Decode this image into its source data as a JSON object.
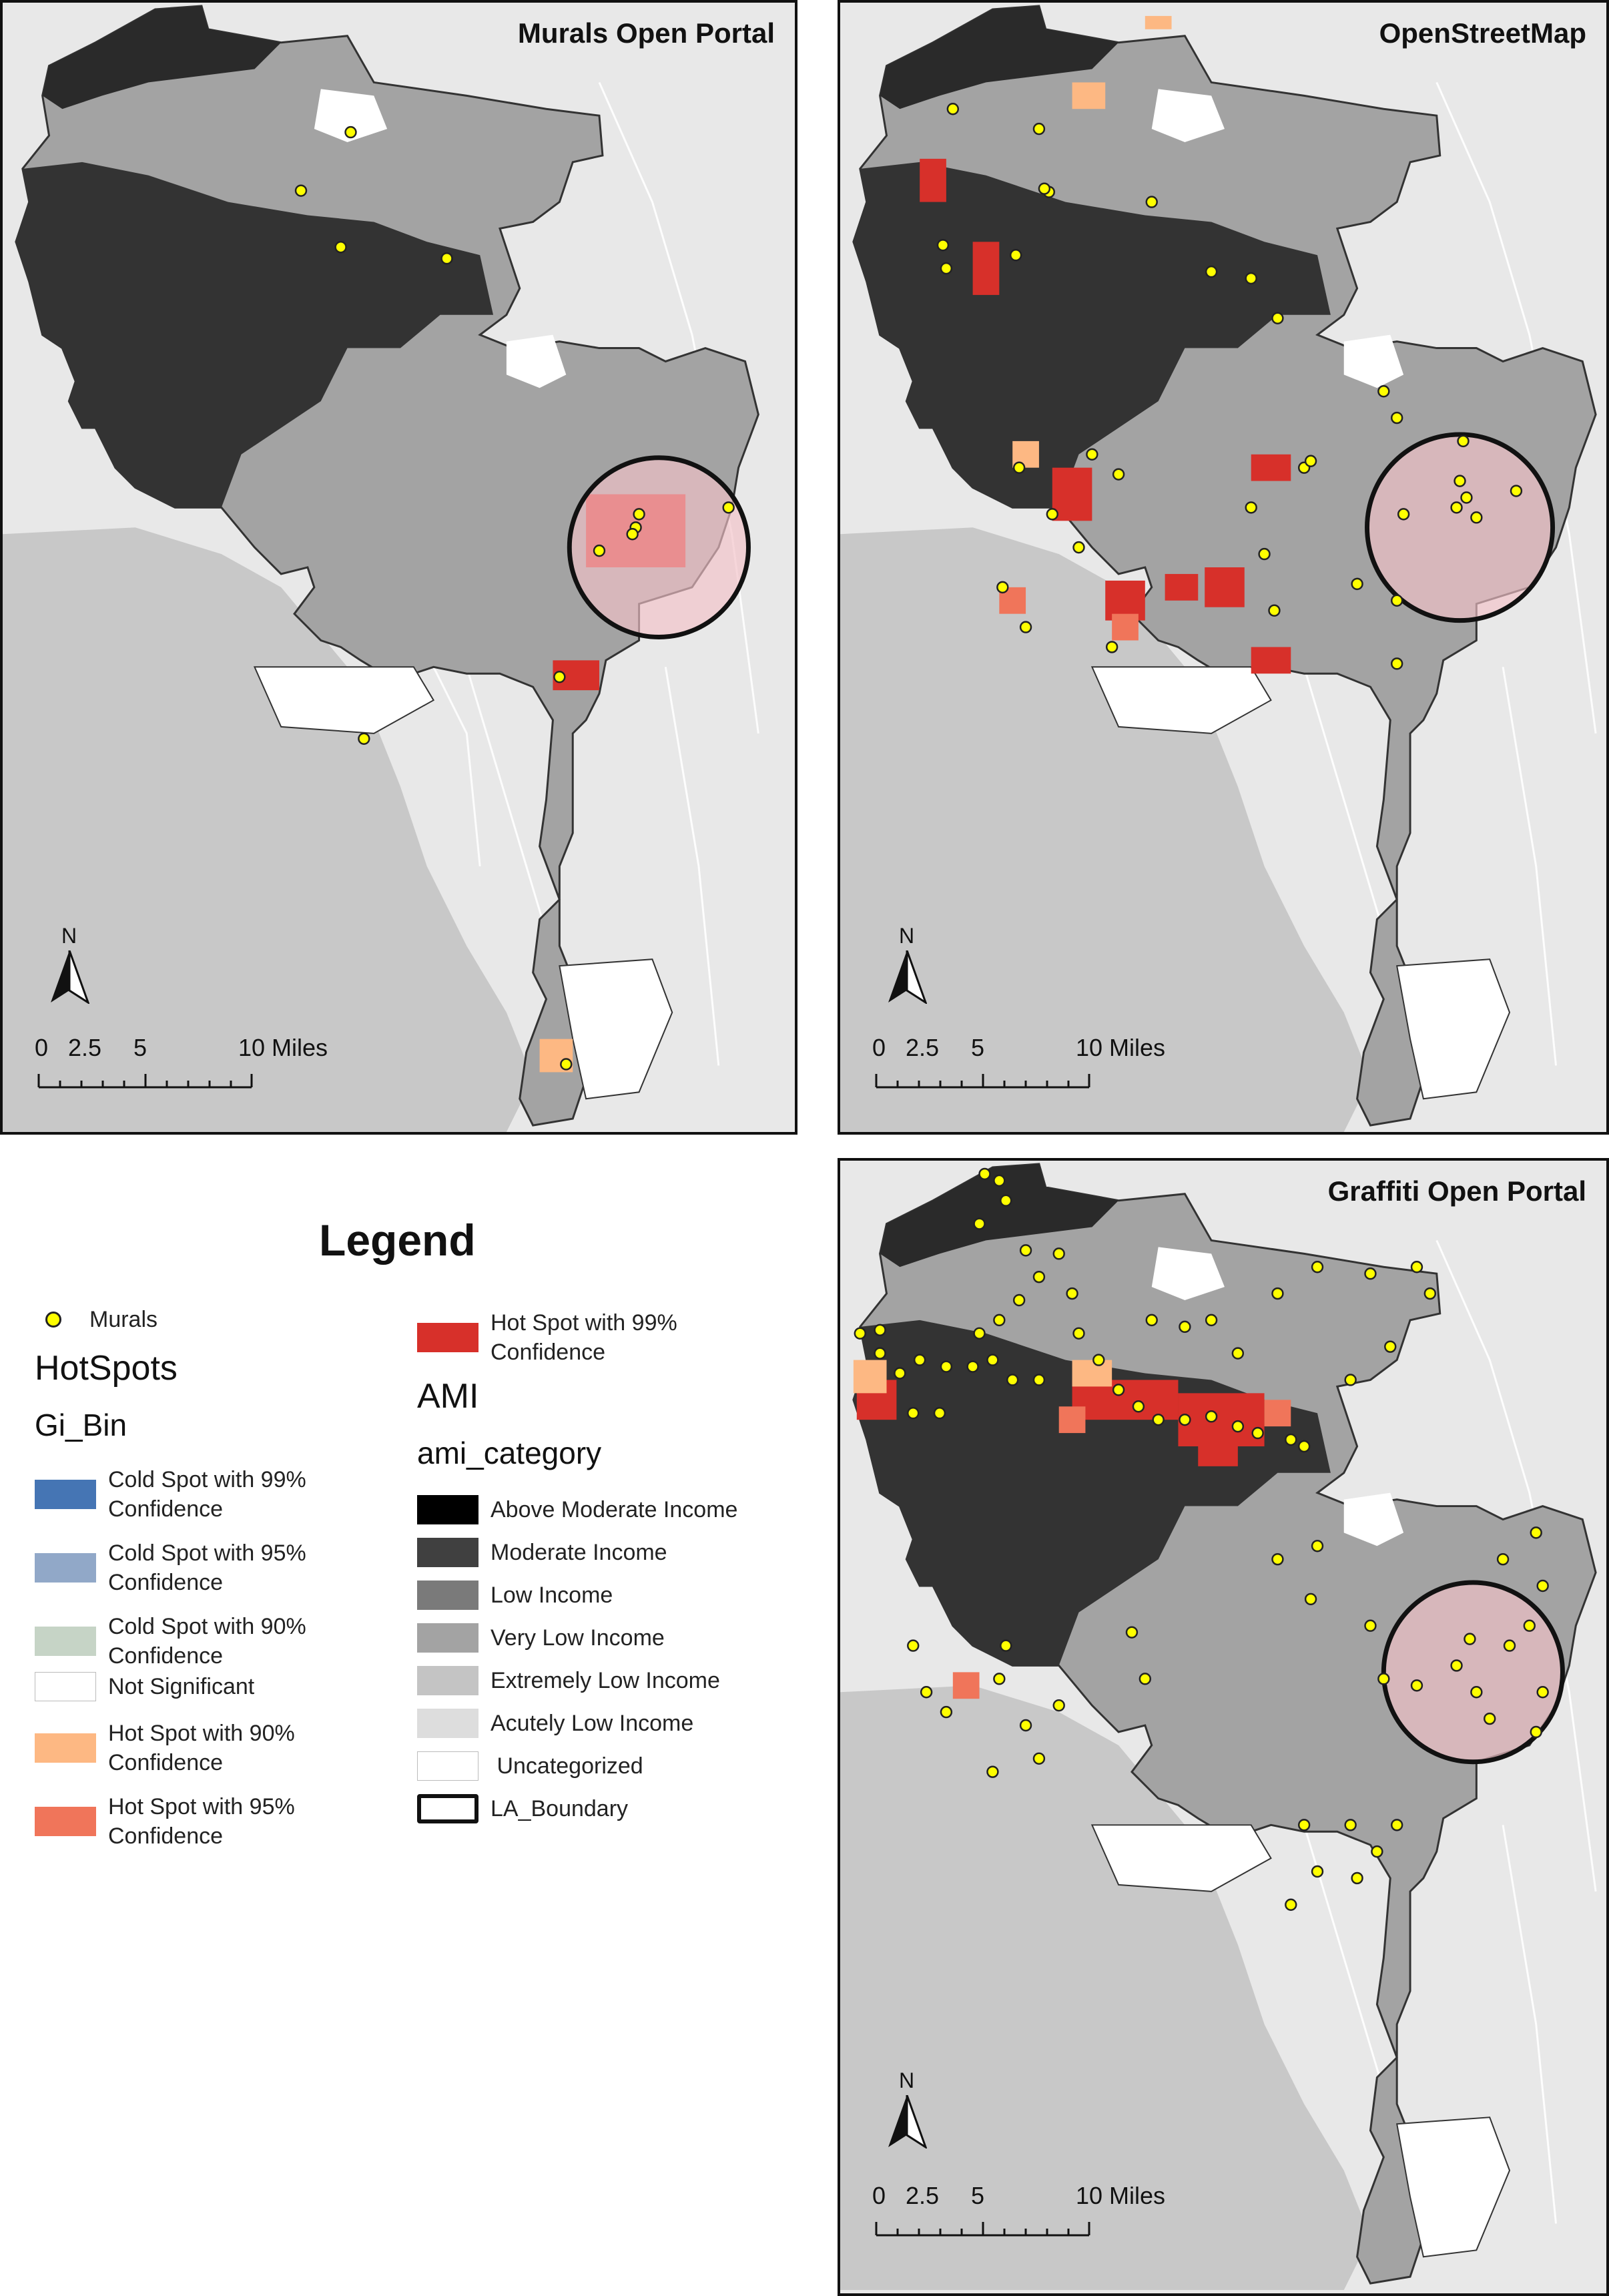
{
  "panels": {
    "murals": {
      "title": "Murals Open Portal"
    },
    "osm": {
      "title": "OpenStreetMap"
    },
    "graffiti": {
      "title": "Graffiti Open Portal"
    }
  },
  "north_label": "N",
  "scale": {
    "labels": [
      "0",
      "2.5",
      "5",
      "10 Miles"
    ]
  },
  "legend": {
    "title": "Legend",
    "murals_label": "Murals",
    "hotspots_heading": "HotSpots",
    "gi_bin_heading": "Gi_Bin",
    "gi_bin_items": [
      {
        "label": "Cold Spot with 99% Confidence",
        "color": "#4575b4"
      },
      {
        "label": "Cold Spot with 95% Confidence",
        "color": "#91a8c8"
      },
      {
        "label": "Cold Spot with 90% Confidence",
        "color": "#c6d4c6"
      },
      {
        "label": "Not Significant",
        "color": "#ffffff"
      },
      {
        "label": "Hot Spot with 90% Confidence",
        "color": "#fdb883"
      },
      {
        "label": "Hot Spot with 95% Confidence",
        "color": "#f0755a"
      },
      {
        "label": "Hot Spot with 99% Confidence",
        "color": "#d7302a"
      }
    ],
    "ami_heading": "AMI",
    "ami_category_heading": "ami_category",
    "ami_items": [
      {
        "label": "Above Moderate Income",
        "color": "#000000"
      },
      {
        "label": "Moderate Income",
        "color": "#404040"
      },
      {
        "label": "Low Income",
        "color": "#7a7a7a"
      },
      {
        "label": "Very Low Income",
        "color": "#a3a3a3"
      },
      {
        "label": "Extremely Low Income",
        "color": "#c4c4c4"
      },
      {
        "label": "Acutely Low Income",
        "color": "#dddddd"
      },
      {
        "label": " Uncategorized",
        "color": "#ffffff"
      },
      {
        "label": "LA_Boundary",
        "color": "#ffffff"
      }
    ]
  },
  "colors": {
    "base_map": "#e8e8e8",
    "ocean": "#c8c8c8",
    "mural_point": "#ffff00",
    "highlight_circle": "#f3c2c8"
  }
}
